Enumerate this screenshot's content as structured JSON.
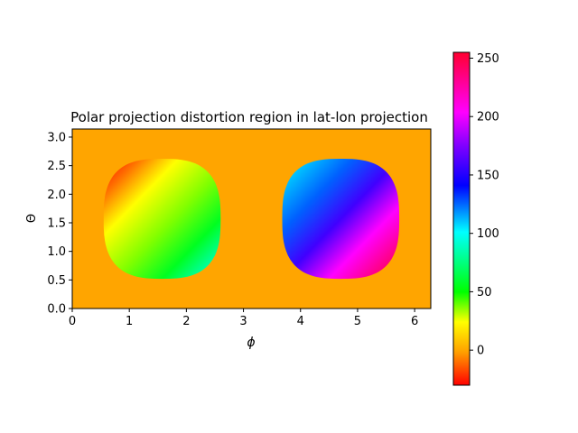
{
  "chart_data": {
    "type": "heatmap",
    "title": "Polar projection distortion region in lat-lon projection",
    "xlabel": "ϕ",
    "ylabel": "Θ",
    "xlim": [
      0,
      6.283
    ],
    "ylim": [
      0,
      3.1416
    ],
    "xticks": [
      "0",
      "1",
      "2",
      "3",
      "4",
      "5",
      "6"
    ],
    "yticks": [
      "0.0",
      "0.5",
      "1.0",
      "1.5",
      "2.0",
      "2.5",
      "3.0"
    ],
    "background_value": 10,
    "colormap": "gist_rainbow_r",
    "regions": [
      {
        "label": "left",
        "x_range": [
          0.55,
          2.6
        ],
        "y_range": [
          0.52,
          2.62
        ],
        "value_min": -30,
        "value_max": 115,
        "gradient": "increases toward lower-right"
      },
      {
        "label": "right",
        "x_range": [
          3.68,
          5.73
        ],
        "y_range": [
          0.52,
          2.62
        ],
        "value_min": 115,
        "value_max": 255,
        "gradient": "increases toward lower-right"
      }
    ],
    "colorbar": {
      "ticks": [
        "0",
        "50",
        "100",
        "150",
        "200",
        "250"
      ],
      "vmin": -30,
      "vmax": 255
    },
    "grid": false
  }
}
